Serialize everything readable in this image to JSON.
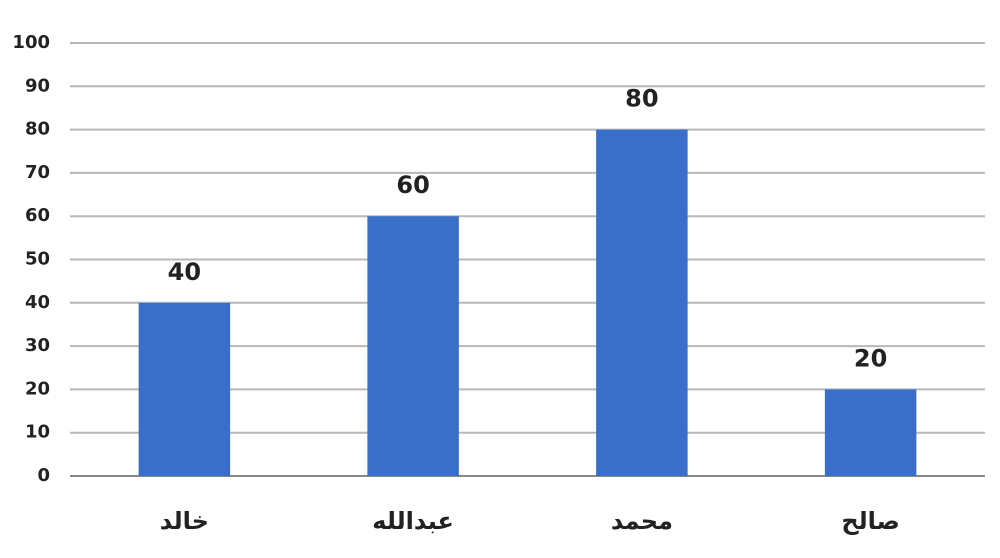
{
  "chart_data": {
    "type": "bar",
    "categories": [
      "خالد",
      "عبدالله",
      "محمد",
      "صالح"
    ],
    "values": [
      40,
      60,
      80,
      20
    ],
    "color": "#3a6fc9",
    "ylim": [
      0,
      100
    ],
    "yticks": [
      0,
      10,
      20,
      30,
      40,
      50,
      60,
      70,
      80,
      90,
      100
    ],
    "grid": true
  }
}
